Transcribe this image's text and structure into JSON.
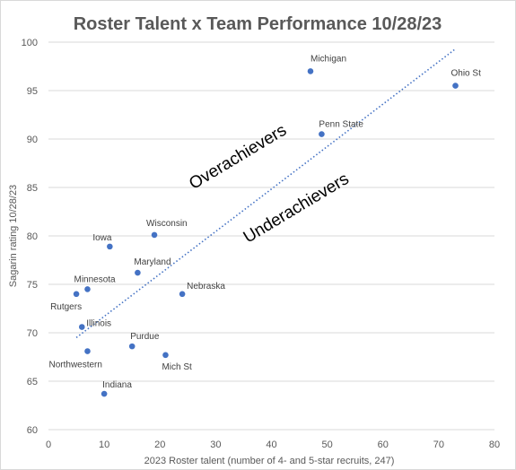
{
  "chart_data": {
    "type": "scatter",
    "title": "Roster Talent x Team Performance 10/28/23",
    "xlabel": "2023 Roster talent (number of 4- and 5-star recruits, 247)",
    "ylabel": "Sagarin rating 10/28/23",
    "xlim": [
      0,
      80
    ],
    "ylim": [
      60,
      100
    ],
    "xticks": [
      0,
      10,
      20,
      30,
      40,
      50,
      60,
      70,
      80
    ],
    "yticks": [
      60,
      65,
      70,
      75,
      80,
      85,
      90,
      95,
      100
    ],
    "grid": "horizontal",
    "points": [
      {
        "label": "Michigan",
        "x": 47,
        "y": 97.0
      },
      {
        "label": "Ohio St",
        "x": 73,
        "y": 95.5
      },
      {
        "label": "Penn State",
        "x": 49,
        "y": 90.5
      },
      {
        "label": "Wisconsin",
        "x": 19,
        "y": 80.1
      },
      {
        "label": "Iowa",
        "x": 11,
        "y": 78.9
      },
      {
        "label": "Maryland",
        "x": 16,
        "y": 76.2
      },
      {
        "label": "Nebraska",
        "x": 24,
        "y": 74.0
      },
      {
        "label": "Minnesota",
        "x": 7,
        "y": 74.5
      },
      {
        "label": "Rutgers",
        "x": 5,
        "y": 74.0
      },
      {
        "label": "Illinois",
        "x": 6,
        "y": 70.6
      },
      {
        "label": "Purdue",
        "x": 15,
        "y": 68.6
      },
      {
        "label": "Northwestern",
        "x": 7,
        "y": 68.1
      },
      {
        "label": "Mich St",
        "x": 21,
        "y": 67.7
      },
      {
        "label": "Indiana",
        "x": 10,
        "y": 63.7
      }
    ],
    "trendline": {
      "x": [
        5,
        73
      ],
      "y": [
        69.5,
        99.3
      ]
    },
    "annotations": [
      "Overachievers",
      "Underachievers"
    ],
    "colors": {
      "points": "#4472c4",
      "trendline": "#4472c4",
      "grid": "#d9d9d9",
      "text": "#595959"
    }
  }
}
